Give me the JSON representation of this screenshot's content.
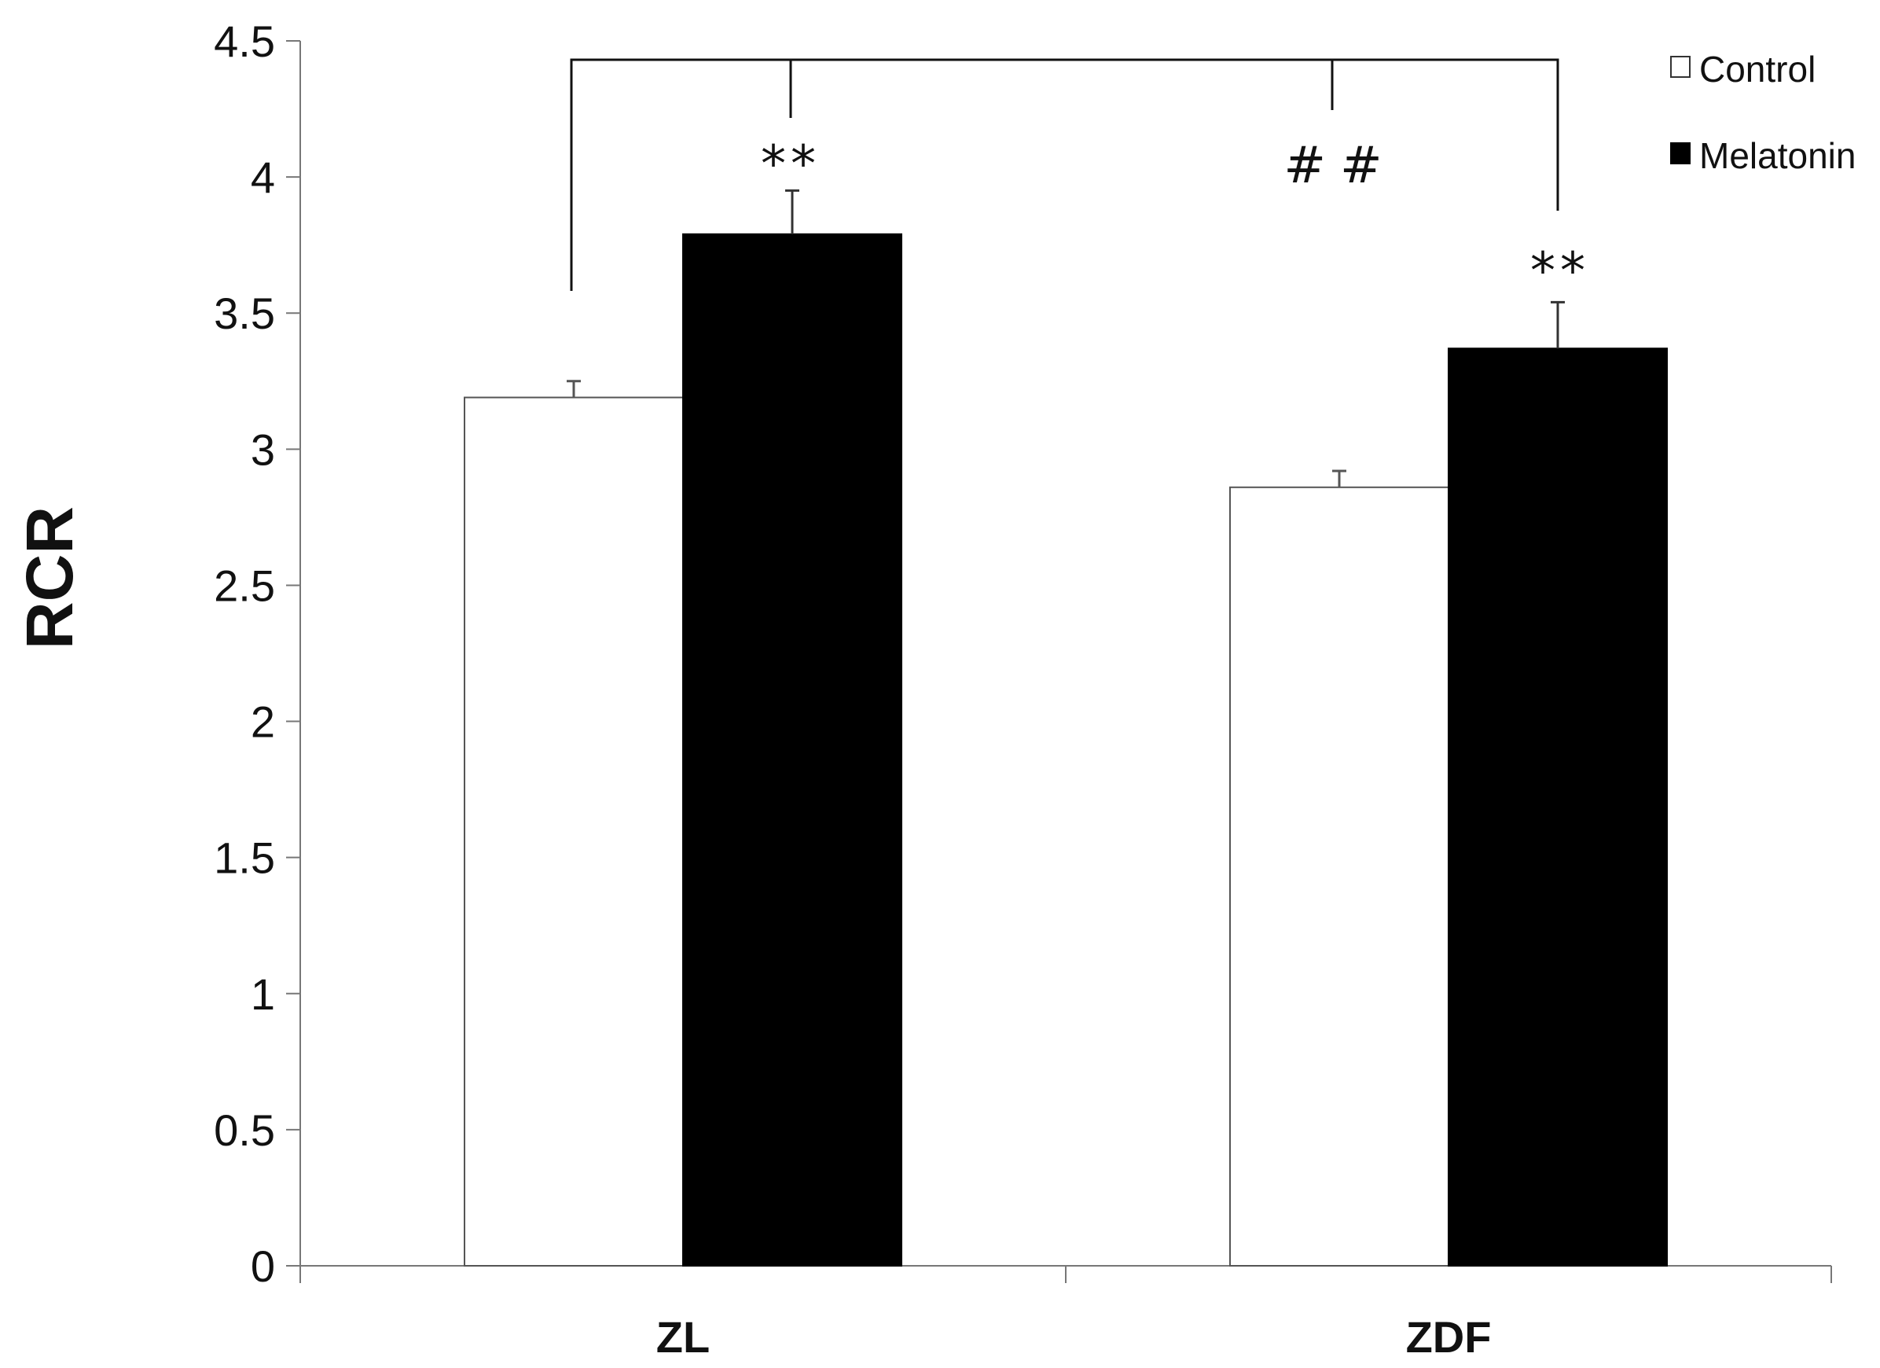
{
  "chart_data": {
    "type": "bar",
    "title": "",
    "xlabel": "",
    "ylabel": "RCR",
    "ylim": [
      0,
      4.5
    ],
    "yticks": [
      "0",
      "0.5",
      "1",
      "1.5",
      "2",
      "2.5",
      "3",
      "3.5",
      "4",
      "4.5"
    ],
    "categories": [
      "ZL",
      "ZDF"
    ],
    "series": [
      {
        "name": "Control",
        "color": "#ffffff",
        "values": [
          3.19,
          2.86
        ],
        "errors": [
          0.06,
          0.06
        ]
      },
      {
        "name": "Melatonin",
        "color": "#000000",
        "values": [
          3.79,
          3.37
        ],
        "errors": [
          0.16,
          0.17
        ]
      }
    ],
    "legend": {
      "position": "top-right",
      "items": [
        "Control",
        "Melatonin"
      ]
    },
    "grid": false,
    "annotations": [
      {
        "text": "**",
        "category": "ZL",
        "series": "Melatonin"
      },
      {
        "text": "**",
        "category": "ZDF",
        "series": "Melatonin"
      },
      {
        "text": "##",
        "between": [
          "ZL",
          "ZDF"
        ]
      }
    ]
  }
}
